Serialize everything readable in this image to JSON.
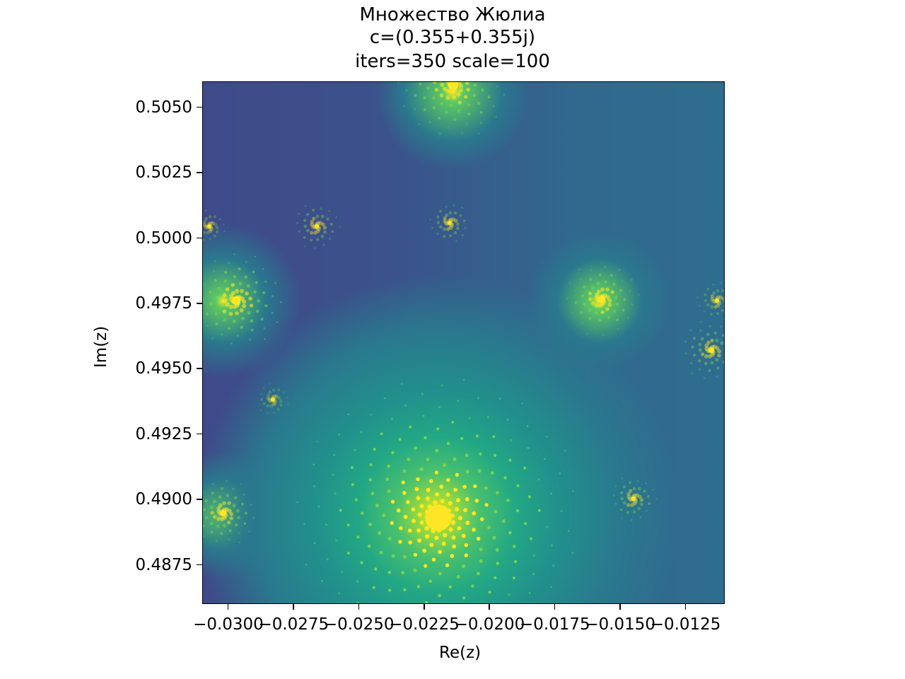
{
  "chart_data": {
    "type": "heatmap",
    "title_lines": [
      "Множество Жюлиа",
      "c=(0.355+0.355j)",
      "iters=350 scale=100"
    ],
    "xlabel": "Re(z)",
    "ylabel": "Im(z)",
    "xlim": [
      -0.031,
      -0.011
    ],
    "ylim": [
      0.486,
      0.506
    ],
    "x_ticks": [
      {
        "value": -0.03,
        "label": "−0.0300"
      },
      {
        "value": -0.0275,
        "label": "−0.0275"
      },
      {
        "value": -0.025,
        "label": "−0.0250"
      },
      {
        "value": -0.0225,
        "label": "−0.0225"
      },
      {
        "value": -0.02,
        "label": "−0.0200"
      },
      {
        "value": -0.0175,
        "label": "−0.0175"
      },
      {
        "value": -0.015,
        "label": "−0.0150"
      },
      {
        "value": -0.0125,
        "label": "−0.0125"
      }
    ],
    "y_ticks": [
      {
        "value": 0.505,
        "label": "0.5050"
      },
      {
        "value": 0.5025,
        "label": "0.5025"
      },
      {
        "value": 0.5,
        "label": "0.5000"
      },
      {
        "value": 0.4975,
        "label": "0.4975"
      },
      {
        "value": 0.495,
        "label": "0.4950"
      },
      {
        "value": 0.4925,
        "label": "0.4925"
      },
      {
        "value": 0.49,
        "label": "0.4900"
      },
      {
        "value": 0.4875,
        "label": "0.4875"
      }
    ],
    "colormap": "viridis",
    "julia_c": [
      0.355,
      0.355
    ],
    "iterations": 350,
    "grid": false
  }
}
